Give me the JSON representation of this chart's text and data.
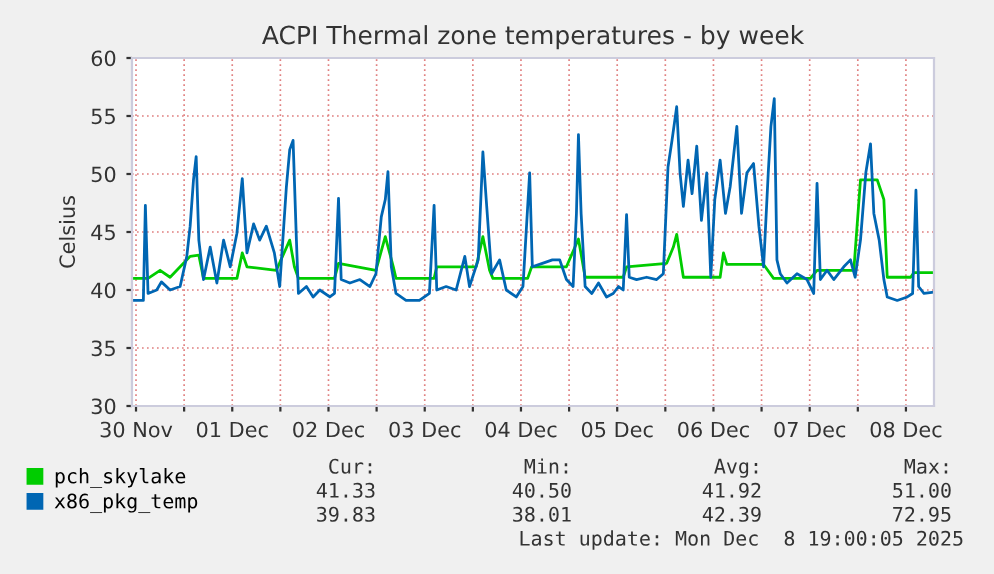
{
  "chart_data": {
    "type": "line",
    "title": "ACPI Thermal zone temperatures - by week",
    "ylabel": "Celsius",
    "xlim": [
      "2025-11-30T11:00",
      "2025-12-08T19:00"
    ],
    "xticks": [
      {
        "value": "2025-11-30T12:00",
        "label": "30 Nov"
      },
      {
        "value": "2025-12-01T00:00",
        "label": null
      },
      {
        "value": "2025-12-01T12:00",
        "label": "01 Dec"
      },
      {
        "value": "2025-12-02T00:00",
        "label": null
      },
      {
        "value": "2025-12-02T12:00",
        "label": "02 Dec"
      },
      {
        "value": "2025-12-03T00:00",
        "label": null
      },
      {
        "value": "2025-12-03T12:00",
        "label": "03 Dec"
      },
      {
        "value": "2025-12-04T00:00",
        "label": null
      },
      {
        "value": "2025-12-04T12:00",
        "label": "04 Dec"
      },
      {
        "value": "2025-12-05T00:00",
        "label": null
      },
      {
        "value": "2025-12-05T12:00",
        "label": "05 Dec"
      },
      {
        "value": "2025-12-06T00:00",
        "label": null
      },
      {
        "value": "2025-12-06T12:00",
        "label": "06 Dec"
      },
      {
        "value": "2025-12-07T00:00",
        "label": null
      },
      {
        "value": "2025-12-07T12:00",
        "label": "07 Dec"
      },
      {
        "value": "2025-12-08T00:00",
        "label": null
      },
      {
        "value": "2025-12-08T12:00",
        "label": "08 Dec"
      }
    ],
    "ylim": [
      30,
      60
    ],
    "yticks": [
      30,
      35,
      40,
      45,
      50,
      55,
      60
    ],
    "grid": true,
    "legend": "bottom",
    "marker": "none",
    "line_style": "solid",
    "series": [
      {
        "name": "pch_skylake",
        "color": "#00cc00",
        "x": [
          "2025-11-30T11:20",
          "2025-11-30T13:50",
          "2025-11-30T14:20",
          "2025-11-30T15:00",
          "2025-11-30T18:00",
          "2025-11-30T20:30",
          "2025-11-30T23:00",
          "2025-12-01T01:30",
          "2025-12-01T03:40",
          "2025-12-01T04:50",
          "2025-12-01T13:10",
          "2025-12-01T14:30",
          "2025-12-01T15:40",
          "2025-12-01T23:00",
          "2025-12-02T02:20",
          "2025-12-02T03:30",
          "2025-12-02T04:30",
          "2025-12-02T13:30",
          "2025-12-02T14:30",
          "2025-12-02T23:50",
          "2025-12-03T02:10",
          "2025-12-03T04:10",
          "2025-12-03T04:50",
          "2025-12-03T14:20",
          "2025-12-03T15:00",
          "2025-12-04T00:50",
          "2025-12-04T02:30",
          "2025-12-04T04:10",
          "2025-12-04T05:00",
          "2025-12-04T13:40",
          "2025-12-04T14:40",
          "2025-12-04T23:20",
          "2025-12-05T02:20",
          "2025-12-05T04:00",
          "2025-12-05T13:30",
          "2025-12-05T14:20",
          "2025-12-06T00:20",
          "2025-12-06T02:00",
          "2025-12-06T02:50",
          "2025-12-06T04:30",
          "2025-12-06T13:40",
          "2025-12-06T14:30",
          "2025-12-06T15:20",
          "2025-12-07T00:30",
          "2025-12-07T03:00",
          "2025-12-07T12:10",
          "2025-12-07T13:50",
          "2025-12-07T23:00",
          "2025-12-08T00:40",
          "2025-12-08T04:50",
          "2025-12-08T06:30",
          "2025-12-08T07:20",
          "2025-12-08T13:10",
          "2025-12-08T14:00",
          "2025-12-08T18:40"
        ],
        "values": [
          41.0,
          41.0,
          41.0,
          41.0,
          41.7,
          41.1,
          42.0,
          42.9,
          43.0,
          41.0,
          41.0,
          43.2,
          42.0,
          41.7,
          44.3,
          42.0,
          41.0,
          41.0,
          42.3,
          41.7,
          44.6,
          42.0,
          41.0,
          41.0,
          42.0,
          42.0,
          44.6,
          41.7,
          41.0,
          41.0,
          42.0,
          42.0,
          44.4,
          41.1,
          41.1,
          42.0,
          42.3,
          43.7,
          44.8,
          41.1,
          41.1,
          43.2,
          42.2,
          42.2,
          41.0,
          41.0,
          41.7,
          41.7,
          49.5,
          49.5,
          47.8,
          41.1,
          41.1,
          41.5,
          41.5
        ]
      },
      {
        "name": "x86_pkg_temp",
        "color": "#0066b3",
        "x": [
          "2025-11-30T11:20",
          "2025-11-30T13:50",
          "2025-11-30T14:20",
          "2025-11-30T15:00",
          "2025-11-30T17:10",
          "2025-11-30T18:20",
          "2025-11-30T20:30",
          "2025-11-30T23:00",
          "2025-12-01T00:40",
          "2025-12-01T01:30",
          "2025-12-01T02:20",
          "2025-12-01T03:00",
          "2025-12-01T03:40",
          "2025-12-01T04:50",
          "2025-12-01T06:30",
          "2025-12-01T08:10",
          "2025-12-01T09:50",
          "2025-12-01T11:30",
          "2025-12-01T13:10",
          "2025-12-01T14:30",
          "2025-12-01T15:40",
          "2025-12-01T17:20",
          "2025-12-01T18:50",
          "2025-12-01T20:30",
          "2025-12-01T22:30",
          "2025-12-01T23:50",
          "2025-12-02T01:30",
          "2025-12-02T02:20",
          "2025-12-02T03:10",
          "2025-12-02T04:00",
          "2025-12-02T04:30",
          "2025-12-02T06:30",
          "2025-12-02T08:10",
          "2025-12-02T09:50",
          "2025-12-02T12:20",
          "2025-12-02T13:30",
          "2025-12-02T14:30",
          "2025-12-02T15:10",
          "2025-12-02T17:20",
          "2025-12-02T19:50",
          "2025-12-02T22:20",
          "2025-12-02T23:50",
          "2025-12-03T01:10",
          "2025-12-03T02:10",
          "2025-12-03T02:50",
          "2025-12-03T03:40",
          "2025-12-03T04:50",
          "2025-12-03T07:20",
          "2025-12-03T10:40",
          "2025-12-03T13:10",
          "2025-12-03T14:20",
          "2025-12-03T15:00",
          "2025-12-03T17:20",
          "2025-12-03T19:50",
          "2025-12-03T22:00",
          "2025-12-03T23:10",
          "2025-12-04T01:20",
          "2025-12-04T02:30",
          "2025-12-04T03:20",
          "2025-12-04T04:40",
          "2025-12-04T06:40",
          "2025-12-04T08:20",
          "2025-12-04T10:50",
          "2025-12-04T12:30",
          "2025-12-04T14:10",
          "2025-12-04T14:50",
          "2025-12-04T17:20",
          "2025-12-04T19:50",
          "2025-12-04T21:40",
          "2025-12-04T23:20",
          "2025-12-05T01:00",
          "2025-12-05T01:50",
          "2025-12-05T02:20",
          "2025-12-05T03:00",
          "2025-12-05T04:00",
          "2025-12-05T05:40",
          "2025-12-05T07:20",
          "2025-12-05T09:20",
          "2025-12-05T11:00",
          "2025-12-05T12:20",
          "2025-12-05T13:30",
          "2025-12-05T14:20",
          "2025-12-05T15:00",
          "2025-12-05T16:50",
          "2025-12-05T19:20",
          "2025-12-05T21:50",
          "2025-12-05T23:30",
          "2025-12-06T00:40",
          "2025-12-06T01:40",
          "2025-12-06T02:50",
          "2025-12-06T03:40",
          "2025-12-06T04:30",
          "2025-12-06T05:40",
          "2025-12-06T06:40",
          "2025-12-06T07:50",
          "2025-12-06T09:00",
          "2025-12-06T10:20",
          "2025-12-06T11:20",
          "2025-12-06T12:20",
          "2025-12-06T13:40",
          "2025-12-06T15:00",
          "2025-12-06T16:10",
          "2025-12-06T17:50",
          "2025-12-06T19:00",
          "2025-12-06T20:20",
          "2025-12-06T22:00",
          "2025-12-06T23:20",
          "2025-12-07T00:30",
          "2025-12-07T01:40",
          "2025-12-07T02:20",
          "2025-12-07T03:10",
          "2025-12-07T03:50",
          "2025-12-07T04:40",
          "2025-12-07T06:20",
          "2025-12-07T08:50",
          "2025-12-07T11:20",
          "2025-12-07T13:00",
          "2025-12-07T13:50",
          "2025-12-07T14:40",
          "2025-12-07T16:20",
          "2025-12-07T18:00",
          "2025-12-07T20:30",
          "2025-12-07T22:10",
          "2025-12-07T23:20",
          "2025-12-08T00:40",
          "2025-12-08T02:00",
          "2025-12-08T03:10",
          "2025-12-08T04:00",
          "2025-12-08T05:20",
          "2025-12-08T06:30",
          "2025-12-08T07:20",
          "2025-12-08T09:50",
          "2025-12-08T12:20",
          "2025-12-08T13:40",
          "2025-12-08T14:30",
          "2025-12-08T15:10",
          "2025-12-08T16:30",
          "2025-12-08T18:40"
        ],
        "values": [
          39.1,
          39.1,
          47.3,
          39.7,
          40.0,
          40.7,
          40.0,
          40.3,
          42.9,
          45.5,
          49.5,
          51.5,
          44.3,
          40.9,
          43.7,
          40.6,
          44.3,
          42.0,
          44.9,
          49.6,
          43.2,
          45.7,
          44.3,
          45.5,
          43.2,
          40.3,
          48.9,
          52.1,
          52.9,
          44.3,
          39.7,
          40.3,
          39.4,
          40.0,
          39.4,
          39.7,
          47.9,
          40.9,
          40.6,
          40.9,
          40.3,
          41.4,
          46.3,
          47.8,
          50.2,
          42.0,
          39.7,
          39.1,
          39.1,
          39.7,
          47.3,
          40.0,
          40.3,
          40.0,
          42.9,
          40.3,
          42.6,
          51.9,
          47.8,
          41.4,
          42.6,
          40.0,
          39.4,
          40.3,
          50.1,
          42.0,
          42.3,
          42.6,
          42.6,
          40.9,
          40.3,
          46.6,
          53.4,
          46.6,
          40.3,
          39.7,
          40.6,
          39.4,
          39.7,
          40.3,
          40.0,
          46.5,
          41.1,
          40.9,
          41.1,
          40.9,
          41.4,
          50.6,
          52.9,
          55.8,
          50.1,
          47.2,
          51.2,
          48.3,
          52.4,
          46.0,
          50.1,
          41.1,
          47.8,
          51.2,
          46.6,
          48.9,
          54.1,
          46.6,
          50.1,
          50.9,
          45.5,
          42.0,
          50.1,
          54.1,
          56.5,
          42.6,
          41.4,
          40.6,
          41.4,
          40.9,
          39.7,
          49.2,
          40.9,
          41.7,
          40.9,
          42.0,
          42.6,
          41.1,
          44.3,
          50.1,
          52.6,
          46.6,
          44.3,
          40.9,
          39.4,
          39.1,
          39.4,
          39.7,
          48.6,
          40.3,
          39.7,
          39.8
        ]
      }
    ],
    "annotations": [
      "Cur:",
      "Min:",
      "Avg:",
      "Max:",
      "41.33",
      "40.50",
      "41.92",
      "51.00",
      "39.83",
      "38.01",
      "42.39",
      "72.95",
      "Last update: Mon Dec  8 19:00:05 2025"
    ]
  }
}
